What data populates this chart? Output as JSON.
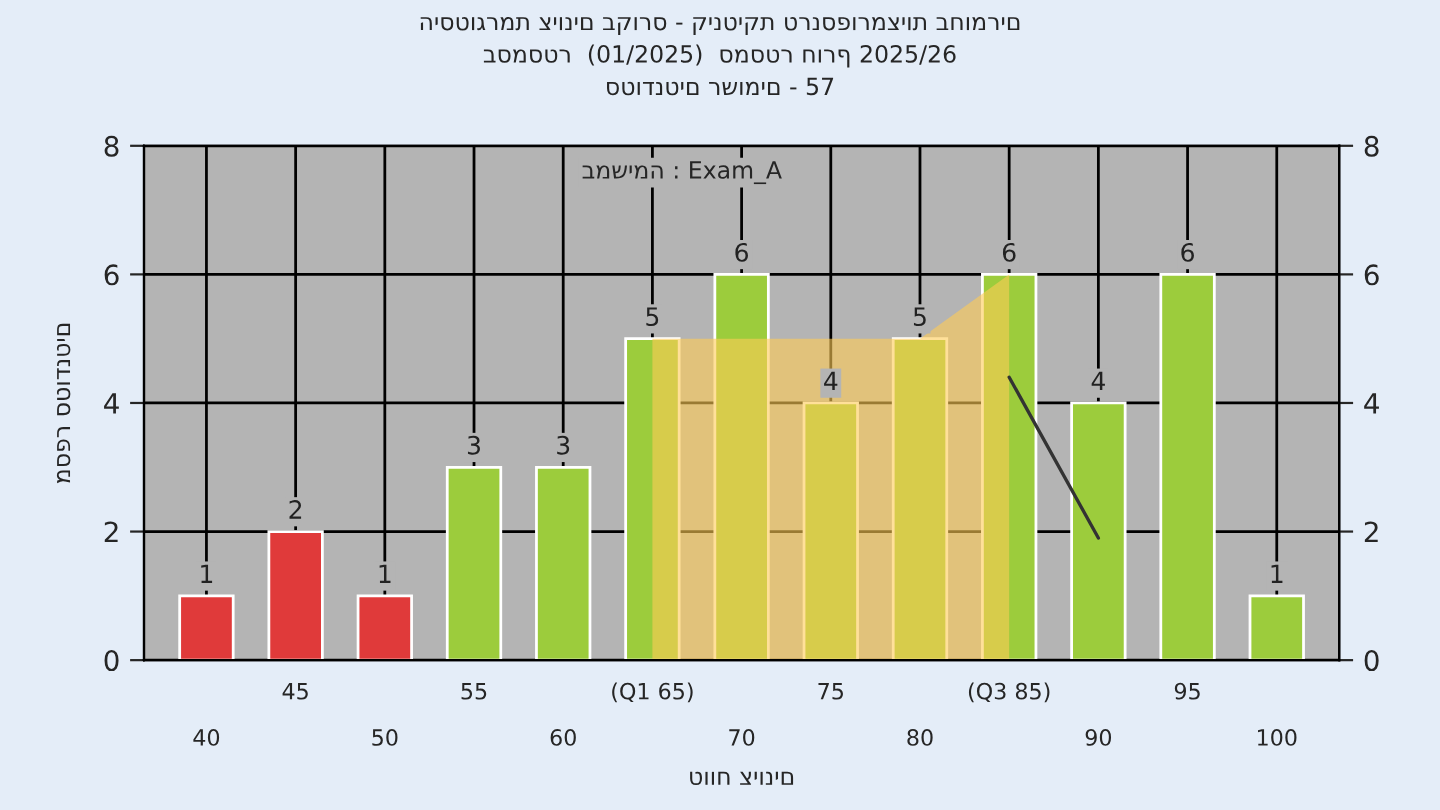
{
  "chart_data": {
    "type": "bar",
    "title": "היסטוגרמת ציונים בקורס - קינטיקת טרנספורמציות בחומרים",
    "subtitle": "בסמסטר  (01/2025)  סמסטר חורף 2025/26",
    "xlabel": "טווח ציונים",
    "ylabel": "מספר סטודנטים",
    "annotations": [
      "סטודנטים רשומים - 57",
      "במשימה : Exam_A"
    ],
    "categories": [
      "40",
      "45",
      "50",
      "55",
      "60",
      "(Q1 65)",
      "70",
      "75",
      "80",
      "(Q3 85)",
      "90",
      "95",
      "100"
    ],
    "series": [
      {
        "type": "area",
        "color": "#ffcc55",
        "values": [
          null,
          null,
          null,
          null,
          null,
          5,
          5,
          5,
          5,
          6,
          null,
          null,
          null
        ]
      },
      {
        "type": "line",
        "color": "#333333",
        "values": [
          null,
          null,
          null,
          null,
          null,
          null,
          null,
          null,
          null,
          4.4,
          1.9,
          null,
          null
        ]
      },
      {
        "colors": [
          "#e03a3a",
          "#e03a3a",
          "#e03a3a",
          "#9ccc3c",
          "#9ccc3c",
          "#9ccc3c",
          "#9ccc3c",
          "#9ccc3c",
          "#9ccc3c",
          "#9ccc3c",
          "#9ccc3c",
          "#9ccc3c",
          "#9ccc3c"
        ],
        "values": [
          1,
          2,
          1,
          3,
          3,
          5,
          6,
          4,
          5,
          6,
          4,
          6,
          1
        ],
        "value_labels": [
          "1",
          "2",
          "1",
          "3",
          "3",
          "5",
          "6",
          "4",
          "5",
          "6",
          "4",
          "6",
          "1"
        ]
      }
    ],
    "ylim": [
      0,
      8
    ],
    "yticks": [
      0,
      2,
      4,
      6,
      8
    ],
    "y2lim": [
      0,
      8
    ],
    "y2ticks": [
      0,
      2,
      4,
      6,
      8
    ],
    "grid": true
  }
}
